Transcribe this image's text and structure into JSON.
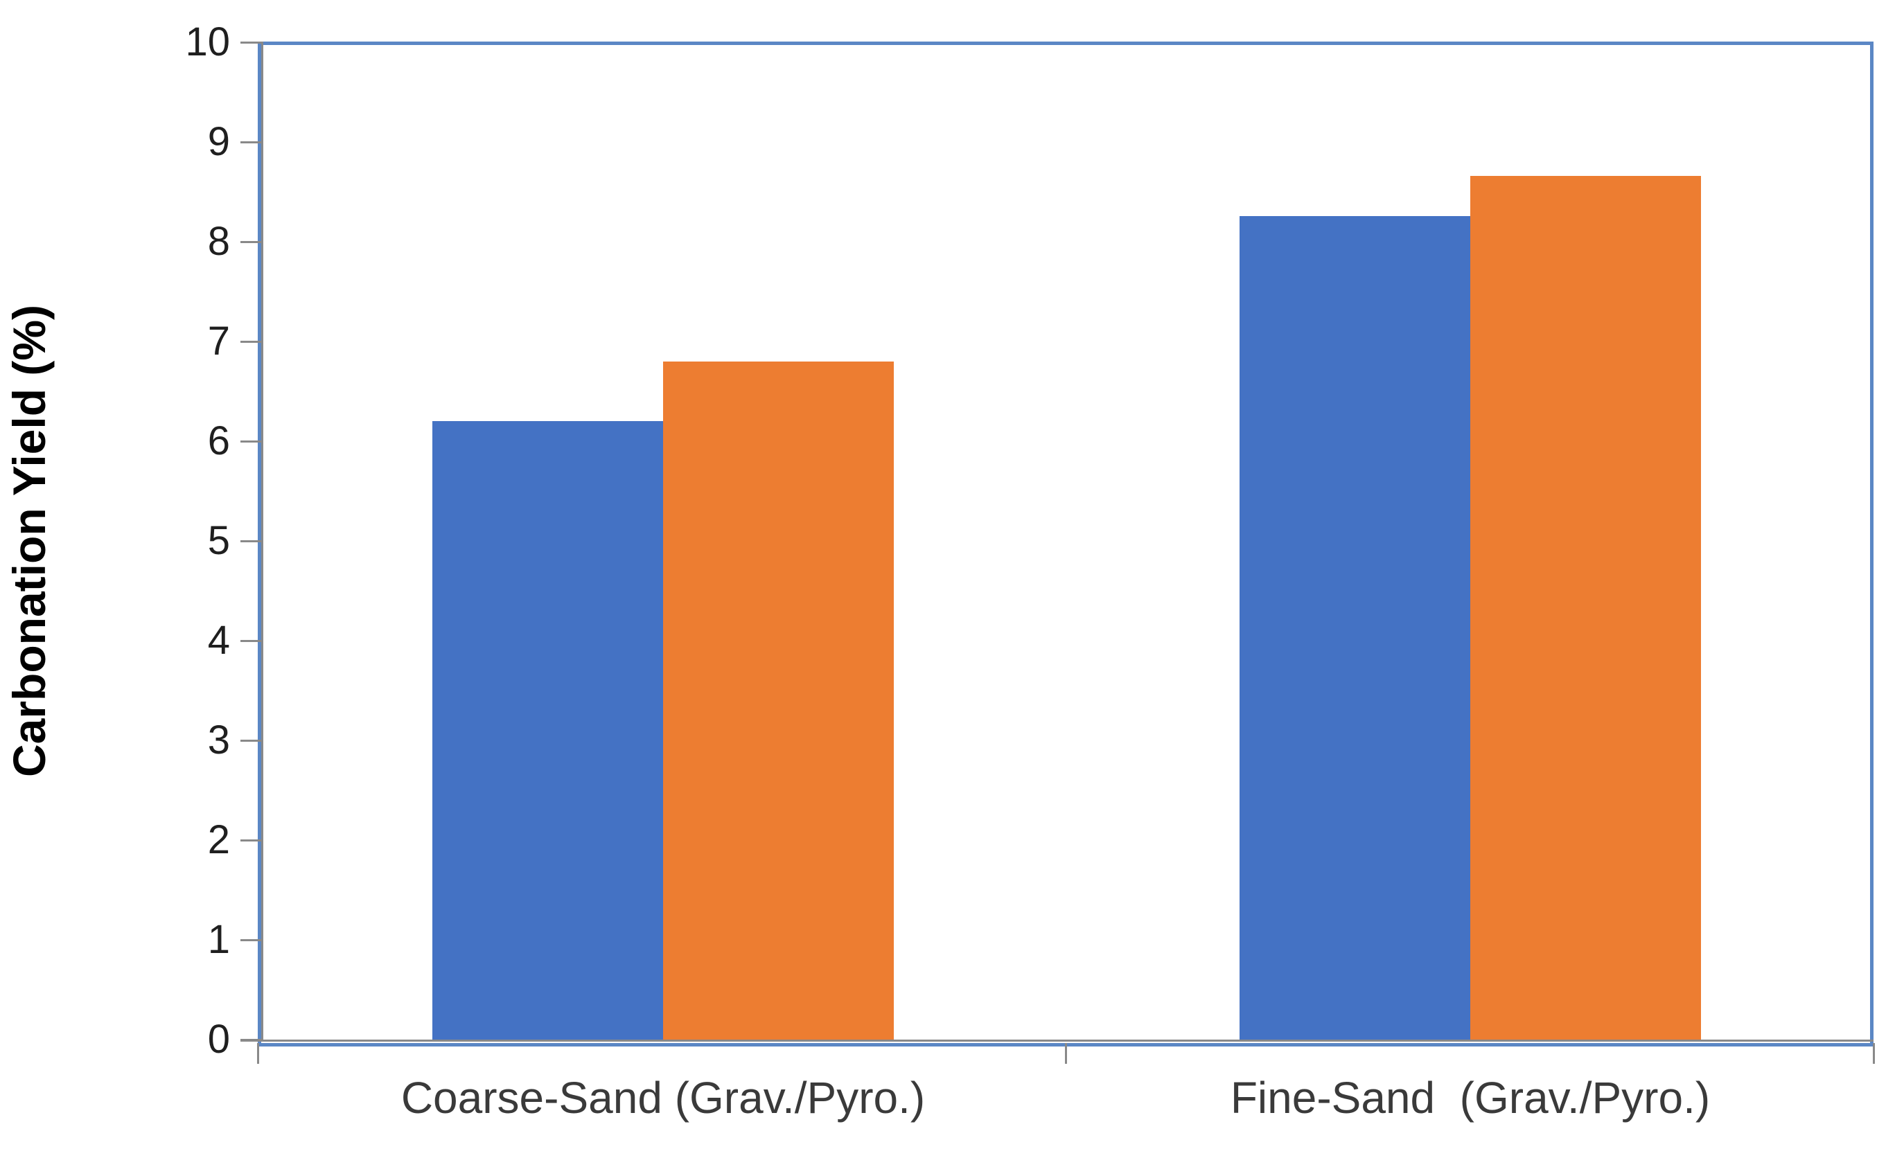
{
  "chart_data": {
    "type": "bar",
    "title": "",
    "xlabel": "",
    "ylabel": "Carbonation Yield (%)",
    "categories": [
      "Coarse-Sand (Grav./Pyro.)",
      "Fine-Sand  (Grav./Pyro.)"
    ],
    "series": [
      {
        "name": "blue-series",
        "color": "#4472C4",
        "values": [
          6.2,
          8.26
        ]
      },
      {
        "name": "orange-series",
        "color": "#ED7D31",
        "values": [
          6.8,
          8.66
        ]
      }
    ],
    "ylim": [
      0,
      10
    ],
    "ytick_labels": [
      "0",
      "1",
      "2",
      "3",
      "4",
      "5",
      "6",
      "7",
      "8",
      "9",
      "10"
    ],
    "grid": false,
    "legend_position": "none"
  },
  "colors": {
    "plot_border": "#5B87C5",
    "axis_line": "#898989",
    "tick_label": "#1f1f1f",
    "category_label": "#3a3a3a"
  }
}
